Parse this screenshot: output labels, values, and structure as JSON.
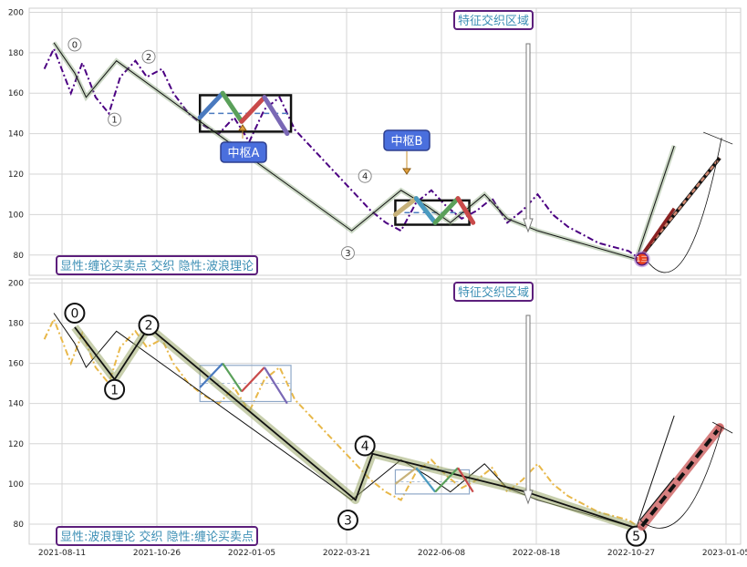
{
  "chart_data": [
    {
      "type": "line",
      "panel": "top",
      "ylim": [
        70,
        202
      ],
      "yticks": [
        80,
        100,
        120,
        140,
        160,
        180,
        200
      ],
      "price_line": [
        [
          8,
          172
        ],
        [
          13,
          182
        ],
        [
          22,
          160
        ],
        [
          28,
          175
        ],
        [
          35,
          158
        ],
        [
          42,
          150
        ],
        [
          48,
          168
        ],
        [
          56,
          176
        ],
        [
          62,
          168
        ],
        [
          70,
          172
        ],
        [
          76,
          160
        ],
        [
          84,
          150
        ],
        [
          92,
          144
        ],
        [
          100,
          140
        ],
        [
          108,
          148
        ],
        [
          116,
          136
        ],
        [
          124,
          152
        ],
        [
          132,
          158
        ],
        [
          140,
          142
        ],
        [
          148,
          134
        ],
        [
          156,
          126
        ],
        [
          164,
          118
        ],
        [
          172,
          110
        ],
        [
          180,
          102
        ],
        [
          188,
          96
        ],
        [
          196,
          92
        ],
        [
          204,
          106
        ],
        [
          212,
          112
        ],
        [
          220,
          104
        ],
        [
          228,
          98
        ],
        [
          236,
          102
        ],
        [
          244,
          108
        ],
        [
          252,
          96
        ],
        [
          260,
          102
        ],
        [
          268,
          110
        ],
        [
          276,
          100
        ],
        [
          284,
          94
        ],
        [
          292,
          90
        ],
        [
          300,
          86
        ],
        [
          308,
          84
        ],
        [
          316,
          82
        ],
        [
          322,
          78
        ]
      ],
      "stroke": [
        [
          13,
          185
        ],
        [
          24,
          170
        ],
        [
          30,
          158
        ],
        [
          46,
          176
        ],
        [
          96,
          142
        ],
        [
          170,
          92
        ],
        [
          196,
          112
        ],
        [
          210,
          104
        ],
        [
          222,
          96
        ],
        [
          240,
          110
        ],
        [
          252,
          98
        ],
        [
          268,
          92
        ],
        [
          320,
          78
        ],
        [
          340,
          134
        ]
      ],
      "pivots": [
        {
          "label": "0",
          "x": 24,
          "y": 184
        },
        {
          "label": "1",
          "x": 45,
          "y": 147
        },
        {
          "label": "2",
          "x": 63,
          "y": 178
        },
        {
          "label": "3",
          "x": 168,
          "y": 81
        },
        {
          "label": "4",
          "x": 177,
          "y": 119
        }
      ],
      "zones": [
        {
          "name": "中枢A",
          "x0": 90,
          "x1": 138,
          "y0": 141,
          "y1": 159
        },
        {
          "name": "中枢B",
          "x0": 193,
          "x1": 232,
          "y0": 95,
          "y1": 107
        }
      ],
      "current_point": {
        "label": "1三",
        "x": 323,
        "y": 78
      },
      "projection": {
        "from": [
          323,
          80
        ],
        "to": [
          364,
          128
        ],
        "color": "#d08870"
      },
      "up_bar": {
        "from": [
          323,
          80
        ],
        "to": [
          340,
          103
        ],
        "color": "#8b2222"
      },
      "arc_end": {
        "x": 365,
        "y": 138
      },
      "annotations": [
        "特征交织区域",
        "显性:缠论买卖点 交织 隐性:波浪理论",
        "中枢A",
        "中枢B"
      ]
    },
    {
      "type": "line",
      "panel": "bottom",
      "ylim": [
        70,
        202
      ],
      "yticks": [
        80,
        100,
        120,
        140,
        160,
        180,
        200
      ],
      "xticks": [
        "2021-08-11",
        "2021-10-26",
        "2022-01-05",
        "2022-03-21",
        "2022-06-08",
        "2022-08-18",
        "2022-10-27",
        "2023-01-05"
      ],
      "price_line": [
        [
          8,
          172
        ],
        [
          13,
          182
        ],
        [
          22,
          160
        ],
        [
          28,
          175
        ],
        [
          35,
          158
        ],
        [
          42,
          150
        ],
        [
          48,
          168
        ],
        [
          56,
          176
        ],
        [
          62,
          168
        ],
        [
          70,
          172
        ],
        [
          76,
          160
        ],
        [
          84,
          150
        ],
        [
          92,
          144
        ],
        [
          100,
          140
        ],
        [
          108,
          148
        ],
        [
          116,
          136
        ],
        [
          124,
          152
        ],
        [
          132,
          158
        ],
        [
          140,
          142
        ],
        [
          148,
          134
        ],
        [
          156,
          126
        ],
        [
          164,
          118
        ],
        [
          172,
          110
        ],
        [
          180,
          102
        ],
        [
          188,
          96
        ],
        [
          196,
          92
        ],
        [
          204,
          106
        ],
        [
          212,
          112
        ],
        [
          220,
          104
        ],
        [
          228,
          98
        ],
        [
          236,
          102
        ],
        [
          244,
          108
        ],
        [
          252,
          96
        ],
        [
          260,
          102
        ],
        [
          268,
          110
        ],
        [
          276,
          100
        ],
        [
          284,
          94
        ],
        [
          292,
          90
        ],
        [
          300,
          86
        ],
        [
          308,
          84
        ],
        [
          316,
          82
        ],
        [
          322,
          78
        ]
      ],
      "wave": [
        [
          24,
          178
        ],
        [
          45,
          152
        ],
        [
          63,
          178
        ],
        [
          172,
          92
        ],
        [
          181,
          115
        ],
        [
          262,
          96
        ],
        [
          320,
          78
        ]
      ],
      "pivots": [
        {
          "label": "0",
          "x": 24,
          "y": 185
        },
        {
          "label": "1",
          "x": 45,
          "y": 147
        },
        {
          "label": "2",
          "x": 63,
          "y": 179
        },
        {
          "label": "3",
          "x": 168,
          "y": 82
        },
        {
          "label": "4",
          "x": 177,
          "y": 119
        },
        {
          "label": "5",
          "x": 320,
          "y": 74
        }
      ],
      "projection": {
        "from": [
          323,
          79
        ],
        "to": [
          364,
          128
        ],
        "color": "#d06a6a"
      },
      "annotations": [
        "特征交织区域",
        "显性:波浪理论 交织 隐性:缠论买卖点"
      ]
    }
  ],
  "texts": {
    "top_feature": "特征交织区域",
    "top_legend": "显性:缠论买卖点 交织 隐性:波浪理论",
    "zone_a": "中枢A",
    "zone_b": "中枢B",
    "current": "1三",
    "bottom_feature": "特征交织区域",
    "bottom_legend": "显性:波浪理论 交织 隐性:缠论买卖点"
  }
}
